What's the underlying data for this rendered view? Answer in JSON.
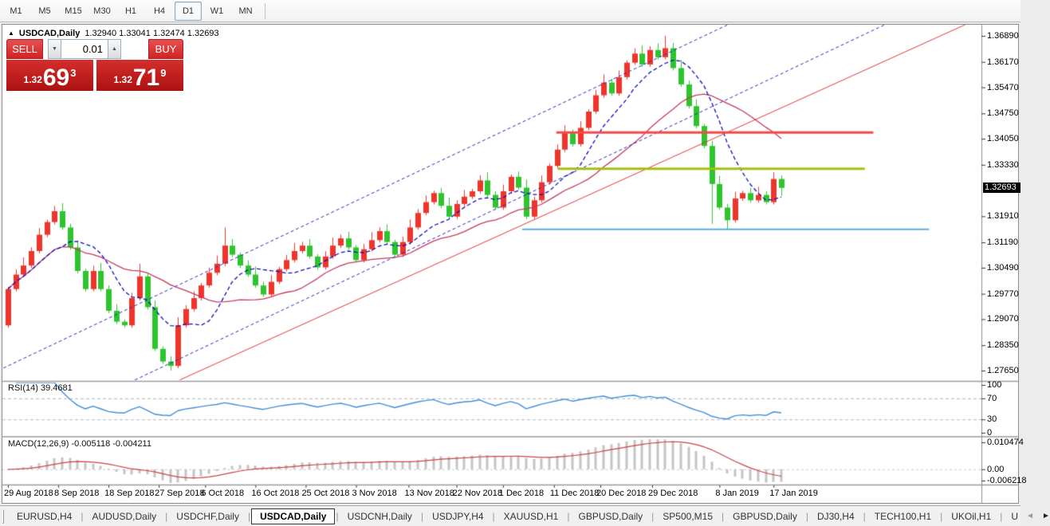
{
  "toolbar": {
    "timeframes": [
      {
        "label": "M1",
        "active": false
      },
      {
        "label": "M5",
        "active": false
      },
      {
        "label": "M15",
        "active": false
      },
      {
        "label": "M30",
        "active": false
      },
      {
        "label": "H1",
        "active": false
      },
      {
        "label": "H4",
        "active": false
      },
      {
        "label": "D1",
        "active": true
      },
      {
        "label": "W1",
        "active": false
      },
      {
        "label": "MN",
        "active": false
      }
    ]
  },
  "chart": {
    "symbol_header": {
      "arrow": "▲",
      "title": "USDCAD,Daily",
      "ohlc_text": "1.32940 1.33041 1.32474 1.32693"
    },
    "trade_panel": {
      "sell_label": "SELL",
      "buy_label": "BUY",
      "volume": "0.01",
      "spin_down": "▼",
      "spin_up": "▲",
      "sell_price": {
        "prefix": "1.32",
        "big": "69",
        "sup": "3"
      },
      "buy_price": {
        "prefix": "1.32",
        "big": "71",
        "sup": "9"
      }
    }
  },
  "rsi_panel": {
    "header": "RSI(14) 39.4681",
    "period": 14,
    "value": 39.4681,
    "upper_level": 70,
    "lower_level": 30,
    "axis_labels": [
      {
        "text": "100",
        "v": 100
      },
      {
        "text": "70",
        "v": 70
      },
      {
        "text": "30",
        "v": 30
      },
      {
        "text": "0",
        "v": 0
      }
    ]
  },
  "macd_panel": {
    "header": "MACD(12,26,9) -0.005118 -0.004211",
    "fast": 12,
    "slow": 26,
    "signal": 9,
    "main_value": -0.005118,
    "signal_value": -0.004211,
    "axis_top_label": "0.010474",
    "axis_zero_label": "0.00",
    "axis_bottom_label": "-0.006218"
  },
  "tabs": {
    "items": [
      {
        "label": "EURUSD,H4"
      },
      {
        "label": "AUDUSD,Daily"
      },
      {
        "label": "USDCHF,Daily"
      },
      {
        "label": "USDCAD,Daily"
      },
      {
        "label": "USDCNH,Daily"
      },
      {
        "label": "USDJPY,H4"
      },
      {
        "label": "XAUUSD,H1"
      },
      {
        "label": "GBPUSD,Daily"
      },
      {
        "label": "SP500,M15"
      },
      {
        "label": "GBPUSD,Daily"
      },
      {
        "label": "DJ30,H4"
      },
      {
        "label": "TECH100,H1"
      },
      {
        "label": "UKOil,H1"
      },
      {
        "label": "U"
      }
    ],
    "active_index": 3,
    "scroll_left": "◄",
    "scroll_right": "►"
  },
  "chart_data": {
    "type": "candlestick",
    "symbol": "USDCAD",
    "timeframe": "Daily",
    "current_bar": {
      "open": 1.3294,
      "high": 1.33041,
      "low": 1.32474,
      "close": 1.32693
    },
    "current_price_label": "1.32693",
    "price_axis_labels": [
      "1.36890",
      "1.36170",
      "1.35470",
      "1.34750",
      "1.34050",
      "1.33330",
      "1.31910",
      "1.31190",
      "1.30490",
      "1.29770",
      "1.29070",
      "1.28350",
      "1.27650"
    ],
    "price_range": {
      "top": 1.3689,
      "bottom": 1.2765,
      "step": 0.0072
    },
    "date_ticks": [
      {
        "label": "29 Aug 2018",
        "bar": 0
      },
      {
        "label": "8 Sep 2018",
        "bar": 6.5
      },
      {
        "label": "18 Sep 2018",
        "bar": 13
      },
      {
        "label": "27 Sep 2018",
        "bar": 19.5
      },
      {
        "label": "6 Oct 2018",
        "bar": 25.5
      },
      {
        "label": "16 Oct 2018",
        "bar": 32
      },
      {
        "label": "25 Oct 2018",
        "bar": 38.5
      },
      {
        "label": "3 Nov 2018",
        "bar": 45
      },
      {
        "label": "13 Nov 2018",
        "bar": 51.8
      },
      {
        "label": "22 Nov 2018",
        "bar": 58
      },
      {
        "label": "1 Dec 2018",
        "bar": 64
      },
      {
        "label": "11 Dec 2018",
        "bar": 70.6
      },
      {
        "label": "20 Dec 2018",
        "bar": 76.6
      },
      {
        "label": "29 Dec 2018",
        "bar": 83.3
      },
      {
        "label": "8 Jan 2019",
        "bar": 92
      },
      {
        "label": "17 Jan 2019",
        "bar": 99
      }
    ],
    "first_open": 1.289,
    "default_wick": 0.0016,
    "closes": [
      1.299,
      1.303,
      1.3055,
      1.3095,
      1.314,
      1.3175,
      1.3205,
      1.316,
      1.3105,
      1.304,
      1.299,
      1.304,
      1.299,
      1.293,
      1.29,
      1.289,
      1.2965,
      1.3025,
      1.294,
      1.2825,
      1.279,
      1.2778,
      1.289,
      1.2935,
      1.2965,
      1.3,
      1.3035,
      1.306,
      1.311,
      1.3085,
      1.3055,
      1.303,
      1.3,
      1.2975,
      1.301,
      1.3045,
      1.307,
      1.3095,
      1.311,
      1.308,
      1.305,
      1.308,
      1.311,
      1.313,
      1.3105,
      1.307,
      1.31,
      1.3125,
      1.315,
      1.312,
      1.3085,
      1.312,
      1.316,
      1.32,
      1.323,
      1.3255,
      1.322,
      1.319,
      1.3225,
      1.3245,
      1.326,
      1.329,
      1.325,
      1.3215,
      1.326,
      1.33,
      1.327,
      1.319,
      1.3235,
      1.3285,
      1.333,
      1.3375,
      1.342,
      1.339,
      1.3435,
      1.348,
      1.3525,
      1.356,
      1.353,
      1.3575,
      1.3615,
      1.364,
      1.361,
      1.365,
      1.363,
      1.3655,
      1.36,
      1.3555,
      1.3495,
      1.344,
      1.3385,
      1.328,
      1.3215,
      1.318,
      1.324,
      1.3255,
      1.3235,
      1.325,
      1.323,
      1.3294,
      1.32693
    ],
    "wick_overrides": {
      "17": {
        "high": 1.306
      },
      "21": {
        "low": 1.2765
      },
      "28": {
        "high": 1.316
      },
      "85": {
        "high": 1.3689
      },
      "91": {
        "low": 1.317
      },
      "93": {
        "low": 1.3155
      },
      "100": {
        "open": 1.3294,
        "high": 1.33041,
        "low": 1.32474,
        "close": 1.32693
      }
    },
    "ma_fast_period": 8,
    "ma_slow_period": 20,
    "trendlines": [
      {
        "name": "channel-upper-blue",
        "x1": -0.6,
        "p1": 1.2772,
        "x2": 93.3,
        "p2": 1.3722,
        "color": "#2929c8",
        "width": 1,
        "dash": [
          4,
          3
        ]
      },
      {
        "name": "channel-lower-blue",
        "x1": 16.4,
        "p1": 1.2739,
        "x2": 113.6,
        "p2": 1.3722,
        "color": "#2929c8",
        "width": 1,
        "dash": [
          4,
          3
        ]
      },
      {
        "name": "trend-red",
        "x1": 22.2,
        "p1": 1.2739,
        "x2": 124.0,
        "p2": 1.3722,
        "color": "#e13737",
        "width": 1,
        "dash": []
      }
    ],
    "hlines": [
      {
        "name": "resistance-red",
        "price": 1.3422,
        "bar1": 70.9,
        "bar2": 111.9,
        "color": "#f64a46",
        "width": 3
      },
      {
        "name": "pivot-olive",
        "price": 1.3322,
        "bar1": 71.1,
        "bar2": 110.8,
        "color": "#a9bd0e",
        "width": 3
      },
      {
        "name": "support-lightblue",
        "price": 1.3155,
        "bar1": 66.5,
        "bar2": 119.1,
        "color": "#5aabe8",
        "width": 2
      }
    ],
    "colors": {
      "up": "#ef342b",
      "down": "#2dc42d",
      "ma_fast": "#0f0fbf",
      "ma_slow": "#c43a5e",
      "rsi_line": "#3f8fd8",
      "level_dash": "#b4b4b4",
      "macd_bar": "#c4c4c4",
      "macd_signal": "#cf4242",
      "tag_bg": "#000000",
      "tag_fg": "#ffffff",
      "separator": "#9a9a9a",
      "axis_tick": "#333333"
    }
  }
}
